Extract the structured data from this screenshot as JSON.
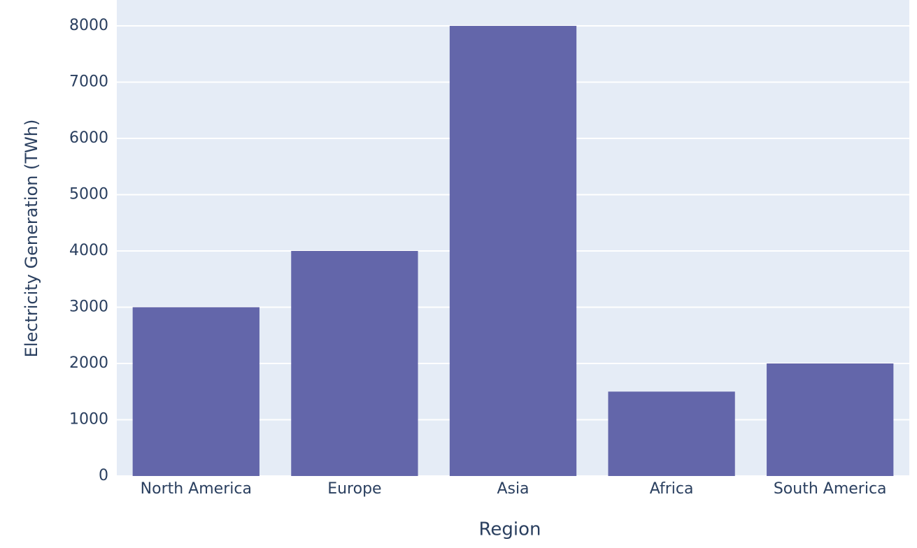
{
  "chart_data": {
    "type": "bar",
    "categories": [
      "North America",
      "Europe",
      "Asia",
      "Africa",
      "South America"
    ],
    "values": [
      3000,
      4000,
      8000,
      1500,
      2000
    ],
    "color": "#6366aa",
    "xlabel": "Region",
    "ylabel": "Electricity Generation (TWh)",
    "ylim": [
      0,
      8460
    ],
    "yticks": [
      0,
      1000,
      2000,
      3000,
      4000,
      5000,
      6000,
      7000,
      8000
    ],
    "grid": true
  }
}
